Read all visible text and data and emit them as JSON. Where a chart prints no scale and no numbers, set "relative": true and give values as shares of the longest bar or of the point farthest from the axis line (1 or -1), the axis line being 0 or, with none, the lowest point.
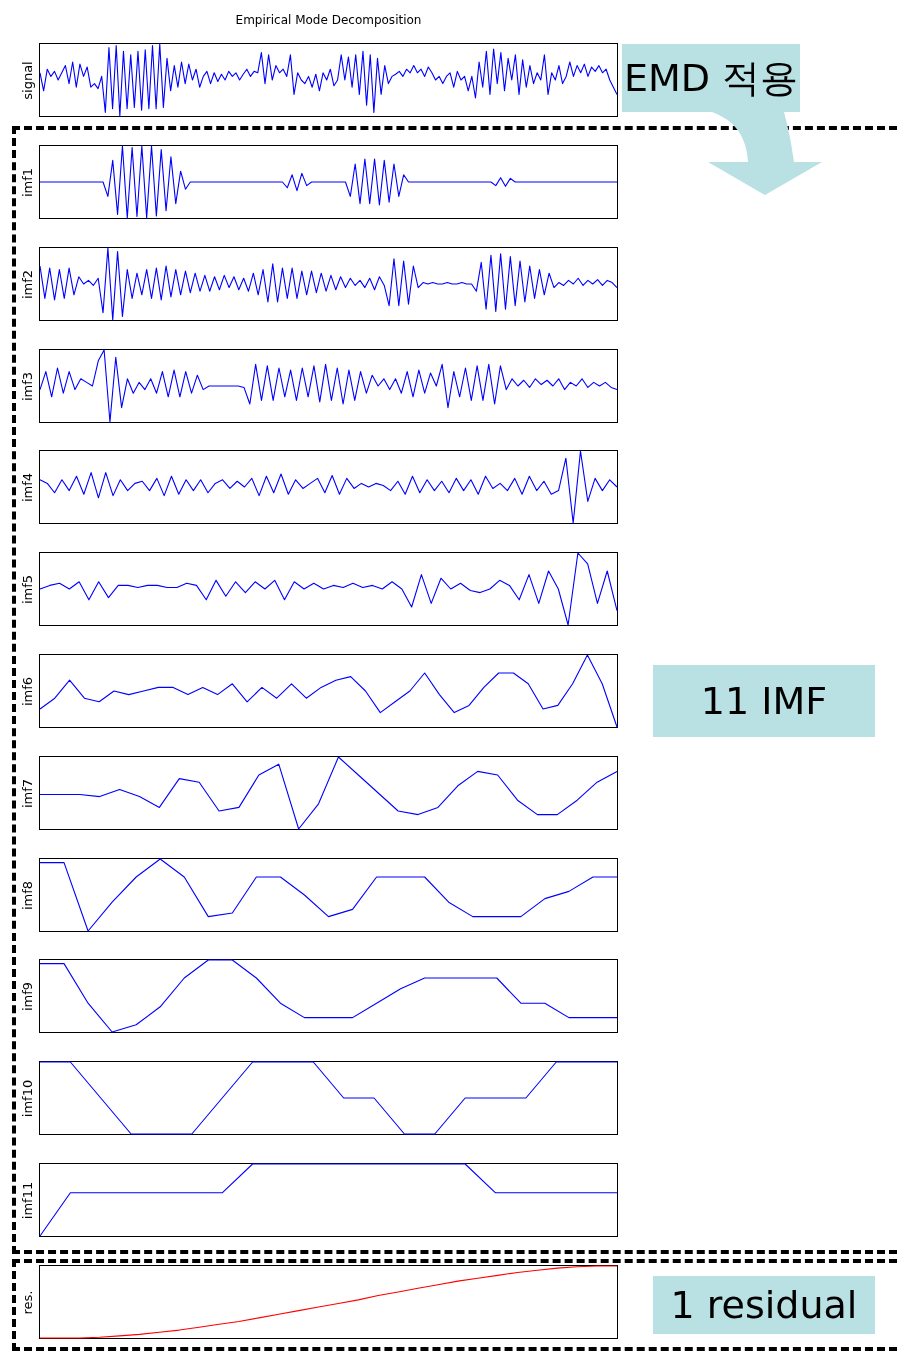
{
  "chart_data": [
    {
      "type": "line",
      "title": "Empirical Mode Decomposition",
      "ylabel": "signal",
      "relative": true,
      "color": "#0000ff",
      "annotations": [
        "EMD 적용"
      ],
      "categories": [
        null,
        null,
        null,
        null,
        null,
        null,
        null,
        null,
        null,
        null,
        null,
        null,
        null,
        null,
        null,
        null,
        null,
        null,
        null,
        null,
        null,
        null,
        null,
        null,
        null,
        null,
        null,
        null,
        null,
        null,
        null,
        null,
        null,
        null,
        null,
        null,
        null,
        null,
        null,
        null,
        null,
        null,
        null,
        null,
        null,
        null,
        null,
        null,
        null,
        null,
        null,
        null,
        null,
        null,
        null,
        null,
        null,
        null,
        null,
        null,
        null,
        null,
        null,
        null,
        null,
        null,
        null,
        null,
        null,
        null,
        null,
        null,
        null,
        null,
        null,
        null,
        null,
        null,
        null,
        null,
        null,
        null,
        null,
        null,
        null,
        null,
        null,
        null,
        null,
        null,
        null,
        null,
        null,
        null,
        null,
        null,
        null,
        null,
        null,
        null,
        null,
        null,
        null,
        null,
        null,
        null,
        null,
        null,
        null,
        null,
        null,
        null,
        null,
        null,
        null,
        null,
        null,
        null,
        null,
        null,
        null,
        null,
        null,
        null,
        null,
        null,
        null,
        null,
        null,
        null,
        null,
        null,
        null,
        null,
        null,
        null,
        null,
        null,
        null,
        null,
        null,
        null,
        null,
        null,
        null,
        null,
        null,
        null,
        null,
        null,
        null,
        null,
        null,
        null,
        null,
        null,
        null,
        null,
        null,
        null
      ],
      "values": [
        0.6,
        0.35,
        0.65,
        0.55,
        0.62,
        0.5,
        0.6,
        0.7,
        0.45,
        0.75,
        0.4,
        0.72,
        0.55,
        0.68,
        0.4,
        0.45,
        0.38,
        0.55,
        0.05,
        0.95,
        0.1,
        0.98,
        0,
        0.9,
        0.1,
        0.85,
        0.12,
        0.9,
        0.08,
        0.92,
        0.1,
        0.98,
        0.1,
        1,
        0.12,
        0.8,
        0.35,
        0.7,
        0.4,
        0.75,
        0.45,
        0.72,
        0.5,
        0.65,
        0.4,
        0.55,
        0.62,
        0.45,
        0.6,
        0.48,
        0.58,
        0.5,
        0.62,
        0.55,
        0.6,
        0.5,
        0.58,
        0.65,
        0.55,
        0.62,
        0.6,
        0.88,
        0.45,
        0.85,
        0.5,
        0.7,
        0.6,
        0.65,
        0.55,
        0.85,
        0.3,
        0.6,
        0.5,
        0.45,
        0.55,
        0.4,
        0.58,
        0.35,
        0.6,
        0.5,
        0.65,
        0.42,
        0.5,
        0.85,
        0.5,
        0.82,
        0.4,
        0.85,
        0.3,
        0.9,
        0.15,
        0.85,
        0.05,
        0.8,
        0.3,
        0.7,
        0.45,
        0.55,
        0.58,
        0.62,
        0.55,
        0.65,
        0.6,
        0.7,
        0.6,
        0.65,
        0.55,
        0.68,
        0.6,
        0.5,
        0.55,
        0.45,
        0.55,
        0.6,
        0.4,
        0.62,
        0.5,
        0.55,
        0.35,
        0.55,
        0.25,
        0.75,
        0.4,
        0.9,
        0.3,
        0.93,
        0.45,
        0.88,
        0.35,
        0.8,
        0.5,
        0.85,
        0.3,
        0.78,
        0.4,
        0.7,
        0.45,
        0.6,
        0.5,
        0.85,
        0.3,
        0.6,
        0.5,
        0.7,
        0.45,
        0.55,
        0.75,
        0.55,
        0.7,
        0.6,
        0.72,
        0.55,
        0.68,
        0.62,
        0.7,
        0.6,
        0.65,
        0.5,
        0.4,
        0.3
      ]
    },
    {
      "type": "line",
      "ylabel": "imf1",
      "relative": true,
      "color": "#0000ff",
      "categories": [
        null,
        null,
        null,
        null,
        null,
        null,
        null,
        null,
        null,
        null,
        null,
        null,
        null,
        null,
        null,
        null,
        null,
        null,
        null,
        null,
        null,
        null,
        null,
        null,
        null,
        null,
        null,
        null,
        null,
        null,
        null,
        null,
        null,
        null,
        null,
        null,
        null,
        null,
        null,
        null,
        null,
        null,
        null,
        null,
        null,
        null,
        null,
        null,
        null,
        null,
        null,
        null,
        null,
        null,
        null,
        null,
        null,
        null,
        null,
        null,
        null,
        null,
        null,
        null,
        null,
        null,
        null,
        null,
        null,
        null,
        null,
        null,
        null,
        null,
        null,
        null,
        null,
        null,
        null,
        null,
        null,
        null,
        null,
        null,
        null,
        null,
        null,
        null,
        null,
        null,
        null,
        null,
        null,
        null,
        null,
        null,
        null,
        null,
        null,
        null,
        null,
        null,
        null,
        null,
        null,
        null,
        null,
        null,
        null,
        null,
        null,
        null,
        null,
        null,
        null,
        null,
        null,
        null,
        null,
        null
      ],
      "values": [
        0.5,
        0.5,
        0.5,
        0.5,
        0.5,
        0.5,
        0.5,
        0.5,
        0.5,
        0.5,
        0.5,
        0.5,
        0.5,
        0.5,
        0.3,
        0.8,
        0.05,
        1,
        0,
        0.98,
        0.02,
        1,
        0,
        1,
        0.03,
        0.95,
        0.1,
        0.85,
        0.2,
        0.65,
        0.4,
        0.5,
        0.5,
        0.5,
        0.5,
        0.5,
        0.5,
        0.5,
        0.5,
        0.5,
        0.5,
        0.5,
        0.5,
        0.5,
        0.5,
        0.5,
        0.5,
        0.5,
        0.5,
        0.5,
        0.5,
        0.42,
        0.6,
        0.38,
        0.62,
        0.45,
        0.5,
        0.5,
        0.5,
        0.5,
        0.5,
        0.5,
        0.5,
        0.5,
        0.3,
        0.75,
        0.2,
        0.82,
        0.2,
        0.82,
        0.18,
        0.8,
        0.22,
        0.75,
        0.3,
        0.6,
        0.5,
        0.5,
        0.5,
        0.5,
        0.5,
        0.5,
        0.5,
        0.5,
        0.5,
        0.5,
        0.5,
        0.5,
        0.5,
        0.5,
        0.5,
        0.5,
        0.5,
        0.5,
        0.45,
        0.56,
        0.44,
        0.55,
        0.5,
        0.5,
        0.5,
        0.5,
        0.5,
        0.5,
        0.5,
        0.5,
        0.5,
        0.5,
        0.5,
        0.5,
        0.5,
        0.5,
        0.5,
        0.5,
        0.5,
        0.5,
        0.5,
        0.5,
        0.5,
        0.5
      ]
    },
    {
      "type": "line",
      "ylabel": "imf2",
      "relative": true,
      "color": "#0000ff",
      "categories": [
        null,
        null,
        null,
        null,
        null,
        null,
        null,
        null,
        null,
        null,
        null,
        null,
        null,
        null,
        null,
        null,
        null,
        null,
        null,
        null,
        null,
        null,
        null,
        null,
        null,
        null,
        null,
        null,
        null,
        null,
        null,
        null,
        null,
        null,
        null,
        null,
        null,
        null,
        null,
        null,
        null,
        null,
        null,
        null,
        null,
        null,
        null,
        null,
        null,
        null,
        null,
        null,
        null,
        null,
        null,
        null,
        null,
        null,
        null,
        null,
        null,
        null,
        null,
        null,
        null,
        null,
        null,
        null,
        null,
        null,
        null,
        null,
        null,
        null,
        null,
        null,
        null,
        null,
        null,
        null,
        null,
        null,
        null,
        null,
        null,
        null,
        null,
        null,
        null,
        null,
        null,
        null,
        null,
        null,
        null,
        null,
        null,
        null,
        null,
        null,
        null,
        null,
        null,
        null,
        null,
        null,
        null,
        null,
        null,
        null,
        null,
        null,
        null,
        null,
        null,
        null,
        null,
        null,
        null,
        null
      ],
      "values": [
        0.75,
        0.3,
        0.72,
        0.28,
        0.7,
        0.3,
        0.72,
        0.35,
        0.6,
        0.5,
        0.55,
        0.48,
        0.58,
        0.1,
        1,
        0,
        0.95,
        0.05,
        0.7,
        0.3,
        0.65,
        0.35,
        0.7,
        0.3,
        0.72,
        0.28,
        0.75,
        0.32,
        0.7,
        0.35,
        0.68,
        0.38,
        0.65,
        0.4,
        0.62,
        0.4,
        0.6,
        0.42,
        0.62,
        0.45,
        0.6,
        0.42,
        0.58,
        0.4,
        0.65,
        0.35,
        0.7,
        0.25,
        0.78,
        0.25,
        0.72,
        0.3,
        0.72,
        0.3,
        0.68,
        0.35,
        0.68,
        0.38,
        0.65,
        0.4,
        0.62,
        0.42,
        0.6,
        0.45,
        0.58,
        0.48,
        0.55,
        0.45,
        0.58,
        0.42,
        0.6,
        0.48,
        0.2,
        0.85,
        0.2,
        0.82,
        0.22,
        0.75,
        0.45,
        0.52,
        0.5,
        0.52,
        0.5,
        0.5,
        0.52,
        0.5,
        0.5,
        0.52,
        0.5,
        0.5,
        0.4,
        0.8,
        0.15,
        0.9,
        0.12,
        0.92,
        0.15,
        0.88,
        0.2,
        0.82,
        0.25,
        0.75,
        0.3,
        0.7,
        0.35,
        0.65,
        0.45,
        0.52,
        0.48,
        0.55,
        0.5,
        0.58,
        0.48,
        0.55,
        0.5,
        0.56,
        0.48,
        0.55,
        0.52,
        0.45
      ]
    },
    {
      "type": "line",
      "ylabel": "imf3",
      "relative": true,
      "color": "#0000ff",
      "categories": [
        null,
        null,
        null,
        null,
        null,
        null,
        null,
        null,
        null,
        null,
        null,
        null,
        null,
        null,
        null,
        null,
        null,
        null,
        null,
        null,
        null,
        null,
        null,
        null,
        null,
        null,
        null,
        null,
        null,
        null,
        null,
        null,
        null,
        null,
        null,
        null,
        null,
        null,
        null,
        null,
        null,
        null,
        null,
        null,
        null,
        null,
        null,
        null,
        null,
        null,
        null,
        null,
        null,
        null,
        null,
        null,
        null,
        null,
        null,
        null,
        null,
        null,
        null,
        null,
        null,
        null,
        null,
        null,
        null,
        null,
        null,
        null,
        null,
        null,
        null,
        null,
        null,
        null,
        null,
        null,
        null,
        null,
        null,
        null,
        null,
        null,
        null,
        null,
        null,
        null,
        null,
        null,
        null,
        null,
        null,
        null,
        null,
        null,
        null,
        null
      ],
      "values": [
        0.45,
        0.7,
        0.35,
        0.75,
        0.4,
        0.7,
        0.45,
        0.6,
        0.55,
        0.5,
        0.85,
        1,
        0,
        0.9,
        0.2,
        0.6,
        0.4,
        0.55,
        0.45,
        0.6,
        0.4,
        0.7,
        0.35,
        0.72,
        0.35,
        0.7,
        0.4,
        0.65,
        0.45,
        0.5,
        0.5,
        0.5,
        0.5,
        0.5,
        0.5,
        0.48,
        0.25,
        0.8,
        0.3,
        0.78,
        0.3,
        0.75,
        0.35,
        0.72,
        0.3,
        0.75,
        0.35,
        0.78,
        0.28,
        0.8,
        0.3,
        0.75,
        0.25,
        0.72,
        0.3,
        0.7,
        0.4,
        0.65,
        0.5,
        0.6,
        0.45,
        0.6,
        0.4,
        0.7,
        0.35,
        0.72,
        0.4,
        0.68,
        0.5,
        0.8,
        0.2,
        0.7,
        0.35,
        0.75,
        0.3,
        0.78,
        0.3,
        0.8,
        0.25,
        0.78,
        0.45,
        0.6,
        0.5,
        0.58,
        0.48,
        0.6,
        0.52,
        0.58,
        0.5,
        0.6,
        0.45,
        0.55,
        0.5,
        0.6,
        0.48,
        0.55,
        0.5,
        0.55,
        0.48,
        0.45
      ]
    },
    {
      "type": "line",
      "ylabel": "imf4",
      "relative": true,
      "color": "#0000ff",
      "categories": [
        null,
        null,
        null,
        null,
        null,
        null,
        null,
        null,
        null,
        null,
        null,
        null,
        null,
        null,
        null,
        null,
        null,
        null,
        null,
        null,
        null,
        null,
        null,
        null,
        null,
        null,
        null,
        null,
        null,
        null,
        null,
        null,
        null,
        null,
        null,
        null,
        null,
        null,
        null,
        null,
        null,
        null,
        null,
        null,
        null,
        null,
        null,
        null,
        null,
        null,
        null,
        null,
        null,
        null,
        null,
        null,
        null,
        null,
        null,
        null,
        null,
        null,
        null,
        null,
        null,
        null,
        null,
        null,
        null,
        null,
        null,
        null,
        null,
        null,
        null,
        null,
        null,
        null,
        null,
        null
      ],
      "values": [
        0.6,
        0.55,
        0.42,
        0.6,
        0.45,
        0.65,
        0.4,
        0.7,
        0.35,
        0.7,
        0.38,
        0.6,
        0.45,
        0.55,
        0.58,
        0.45,
        0.62,
        0.38,
        0.65,
        0.4,
        0.6,
        0.45,
        0.6,
        0.42,
        0.55,
        0.6,
        0.48,
        0.58,
        0.5,
        0.62,
        0.38,
        0.65,
        0.42,
        0.68,
        0.4,
        0.6,
        0.48,
        0.55,
        0.62,
        0.42,
        0.66,
        0.4,
        0.62,
        0.48,
        0.55,
        0.5,
        0.55,
        0.52,
        0.45,
        0.58,
        0.4,
        0.65,
        0.42,
        0.6,
        0.45,
        0.58,
        0.42,
        0.62,
        0.45,
        0.6,
        0.4,
        0.65,
        0.48,
        0.55,
        0.45,
        0.62,
        0.4,
        0.65,
        0.45,
        0.58,
        0.4,
        0.45,
        0.9,
        0,
        1,
        0.3,
        0.62,
        0.45,
        0.6,
        0.5
      ]
    },
    {
      "type": "line",
      "ylabel": "imf5",
      "relative": true,
      "color": "#0000ff",
      "categories": [
        null,
        null,
        null,
        null,
        null,
        null,
        null,
        null,
        null,
        null,
        null,
        null,
        null,
        null,
        null,
        null,
        null,
        null,
        null,
        null,
        null,
        null,
        null,
        null,
        null,
        null,
        null,
        null,
        null,
        null,
        null,
        null,
        null,
        null,
        null,
        null,
        null,
        null,
        null,
        null,
        null,
        null,
        null,
        null,
        null,
        null,
        null,
        null,
        null,
        null,
        null,
        null,
        null,
        null,
        null,
        null,
        null,
        null,
        null,
        null
      ],
      "values": [
        0.5,
        0.55,
        0.58,
        0.5,
        0.6,
        0.35,
        0.6,
        0.38,
        0.55,
        0.55,
        0.52,
        0.55,
        0.55,
        0.52,
        0.52,
        0.58,
        0.55,
        0.35,
        0.62,
        0.4,
        0.6,
        0.45,
        0.6,
        0.5,
        0.62,
        0.35,
        0.6,
        0.5,
        0.58,
        0.5,
        0.55,
        0.52,
        0.58,
        0.52,
        0.55,
        0.5,
        0.6,
        0.5,
        0.25,
        0.7,
        0.3,
        0.65,
        0.5,
        0.58,
        0.48,
        0.45,
        0.5,
        0.62,
        0.55,
        0.35,
        0.7,
        0.3,
        0.75,
        0.5,
        0,
        1,
        0.85,
        0.3,
        0.75,
        0.2
      ]
    },
    {
      "type": "line",
      "ylabel": "imf6",
      "relative": true,
      "color": "#0000ff",
      "annotations": [
        "11 IMF"
      ],
      "categories": [
        null,
        null,
        null,
        null,
        null,
        null,
        null,
        null,
        null,
        null,
        null,
        null,
        null,
        null,
        null,
        null,
        null,
        null,
        null,
        null,
        null,
        null,
        null,
        null,
        null,
        null,
        null,
        null,
        null,
        null,
        null,
        null,
        null,
        null,
        null,
        null,
        null,
        null,
        null,
        null
      ],
      "values": [
        0.25,
        0.4,
        0.65,
        0.4,
        0.35,
        0.5,
        0.45,
        0.5,
        0.55,
        0.55,
        0.45,
        0.55,
        0.45,
        0.6,
        0.35,
        0.55,
        0.4,
        0.6,
        0.4,
        0.55,
        0.65,
        0.7,
        0.5,
        0.2,
        0.35,
        0.5,
        0.75,
        0.45,
        0.2,
        0.3,
        0.55,
        0.75,
        0.75,
        0.6,
        0.25,
        0.3,
        0.6,
        1,
        0.6,
        0
      ]
    },
    {
      "type": "line",
      "ylabel": "imf7",
      "relative": true,
      "color": "#0000ff",
      "categories": [
        null,
        null,
        null,
        null,
        null,
        null,
        null,
        null,
        null,
        null,
        null,
        null,
        null,
        null,
        null,
        null,
        null,
        null,
        null,
        null,
        null,
        null,
        null,
        null,
        null,
        null,
        null,
        null,
        null,
        null
      ],
      "values": [
        0.48,
        0.48,
        0.48,
        0.45,
        0.55,
        0.45,
        0.3,
        0.7,
        0.65,
        0.25,
        0.3,
        0.75,
        0.9,
        0,
        0.35,
        1,
        0.75,
        0.5,
        0.25,
        0.2,
        0.3,
        0.6,
        0.8,
        0.75,
        0.4,
        0.2,
        0.2,
        0.4,
        0.65,
        0.8
      ]
    },
    {
      "type": "line",
      "ylabel": "imf8",
      "relative": true,
      "color": "#0000ff",
      "categories": [
        null,
        null,
        null,
        null,
        null,
        null,
        null,
        null,
        null,
        null,
        null,
        null,
        null,
        null,
        null,
        null,
        null,
        null,
        null,
        null,
        null,
        null,
        null,
        null,
        null
      ],
      "values": [
        0.95,
        0.95,
        0,
        0.4,
        0.75,
        1,
        0.75,
        0.2,
        0.25,
        0.75,
        0.75,
        0.5,
        0.2,
        0.3,
        0.75,
        0.75,
        0.75,
        0.4,
        0.2,
        0.2,
        0.2,
        0.45,
        0.55,
        0.75,
        0.75
      ]
    },
    {
      "type": "line",
      "ylabel": "imf9",
      "relative": true,
      "color": "#0000ff",
      "categories": [
        null,
        null,
        null,
        null,
        null,
        null,
        null,
        null,
        null,
        null,
        null,
        null,
        null,
        null,
        null,
        null,
        null,
        null,
        null,
        null,
        null,
        null,
        null,
        null,
        null
      ],
      "values": [
        0.95,
        0.95,
        0.4,
        0,
        0.1,
        0.35,
        0.75,
        1,
        1,
        0.75,
        0.4,
        0.2,
        0.2,
        0.2,
        0.4,
        0.6,
        0.75,
        0.75,
        0.75,
        0.75,
        0.4,
        0.4,
        0.2,
        0.2,
        0.2
      ]
    },
    {
      "type": "line",
      "ylabel": "imf10",
      "relative": true,
      "color": "#0000ff",
      "categories": [
        null,
        null,
        null,
        null,
        null,
        null,
        null,
        null,
        null,
        null,
        null,
        null,
        null,
        null,
        null,
        null,
        null,
        null,
        null,
        null
      ],
      "values": [
        1,
        1,
        0.5,
        0,
        0,
        0,
        0.5,
        1,
        1,
        1,
        0.5,
        0.5,
        0,
        0,
        0.5,
        0.5,
        0.5,
        1,
        1,
        1
      ]
    },
    {
      "type": "line",
      "ylabel": "imf11",
      "relative": true,
      "color": "#0000ff",
      "categories": [
        null,
        null,
        null,
        null,
        null,
        null,
        null,
        null,
        null,
        null,
        null,
        null,
        null,
        null,
        null,
        null,
        null,
        null,
        null,
        null
      ],
      "values": [
        0,
        0.6,
        0.6,
        0.6,
        0.6,
        0.6,
        0.6,
        1,
        1,
        1,
        1,
        1,
        1,
        1,
        1,
        0.6,
        0.6,
        0.6,
        0.6,
        0.6
      ]
    },
    {
      "type": "line",
      "ylabel": "res.",
      "relative": true,
      "color": "#ff0000",
      "annotations": [
        "1 residual"
      ],
      "categories": [
        null,
        null,
        null,
        null,
        null,
        null,
        null,
        null,
        null,
        null,
        null,
        null,
        null,
        null,
        null,
        null,
        null,
        null,
        null,
        null,
        null,
        null,
        null,
        null,
        null,
        null,
        null,
        null,
        null,
        null
      ],
      "values": [
        0,
        0,
        0,
        0.01,
        0.03,
        0.05,
        0.08,
        0.11,
        0.15,
        0.19,
        0.23,
        0.28,
        0.33,
        0.38,
        0.43,
        0.48,
        0.53,
        0.59,
        0.64,
        0.69,
        0.74,
        0.79,
        0.83,
        0.87,
        0.91,
        0.94,
        0.97,
        0.99,
        1,
        1
      ]
    }
  ]
}
